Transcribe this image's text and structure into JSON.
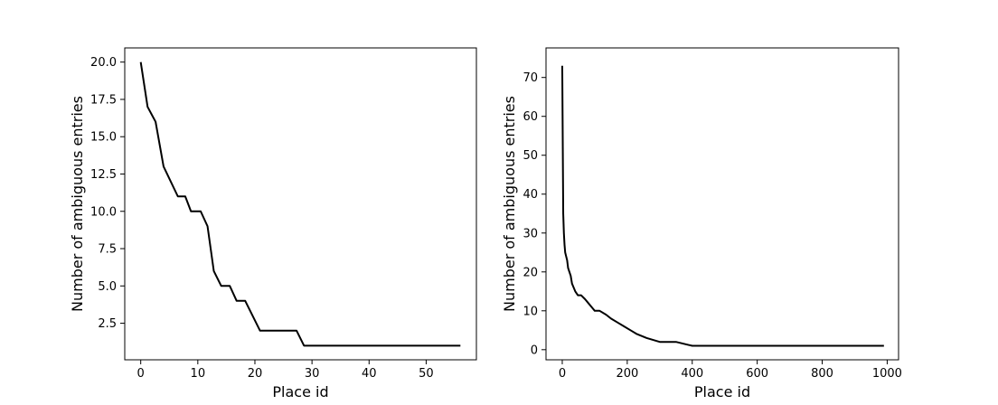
{
  "chart_data": [
    {
      "type": "line",
      "xlabel": "Place id",
      "ylabel": "Number of ambiguous entries",
      "xlim": [
        -2.8,
        58.8
      ],
      "ylim": [
        0.05,
        20.95
      ],
      "xticks": [
        0,
        10,
        20,
        30,
        40,
        50
      ],
      "xtick_labels": [
        "0",
        "10",
        "20",
        "30",
        "40",
        "50"
      ],
      "yticks": [
        2.5,
        5.0,
        7.5,
        10.0,
        12.5,
        15.0,
        17.5,
        20.0
      ],
      "ytick_labels": [
        "2.5",
        "5.0",
        "7.5",
        "10.0",
        "12.5",
        "15.0",
        "17.5",
        "20.0"
      ],
      "grid": false,
      "series": [
        {
          "color": "#000000",
          "x": [
            0,
            1.2,
            2.6,
            4,
            6.5,
            7.8,
            8.8,
            10.5,
            11.7,
            12.8,
            14.1,
            15.6,
            16.8,
            18.3,
            20.9,
            27.3,
            28.6,
            56
          ],
          "y": [
            20,
            17,
            16,
            13,
            11,
            11,
            10,
            10,
            9,
            6,
            5,
            5,
            4,
            4,
            2,
            2,
            1,
            1
          ]
        }
      ]
    },
    {
      "type": "line",
      "xlabel": "Place id",
      "ylabel": "Number of ambiguous entries",
      "xlim": [
        -50,
        1035
      ],
      "ylim": [
        -2.6,
        77.6
      ],
      "xticks": [
        0,
        200,
        400,
        600,
        800,
        1000
      ],
      "xtick_labels": [
        "0",
        "200",
        "400",
        "600",
        "800",
        "1000"
      ],
      "yticks": [
        0,
        10,
        20,
        30,
        40,
        50,
        60,
        70
      ],
      "ytick_labels": [
        "0",
        "10",
        "20",
        "30",
        "40",
        "50",
        "60",
        "70"
      ],
      "grid": false,
      "series": [
        {
          "color": "#000000",
          "x": [
            0,
            3,
            5,
            7,
            9,
            12,
            15,
            18,
            22,
            26,
            30,
            35,
            40,
            48,
            58,
            70,
            80,
            90,
            100,
            115,
            135,
            150,
            170,
            190,
            210,
            230,
            260,
            300,
            350,
            400,
            990
          ],
          "y": [
            73,
            35,
            30,
            27,
            25,
            24,
            23,
            21,
            20,
            19,
            17,
            16,
            15,
            14,
            14,
            13,
            12,
            11,
            10,
            10,
            9,
            8,
            7,
            6,
            5,
            4,
            3,
            2,
            2,
            1,
            1
          ]
        }
      ]
    }
  ]
}
